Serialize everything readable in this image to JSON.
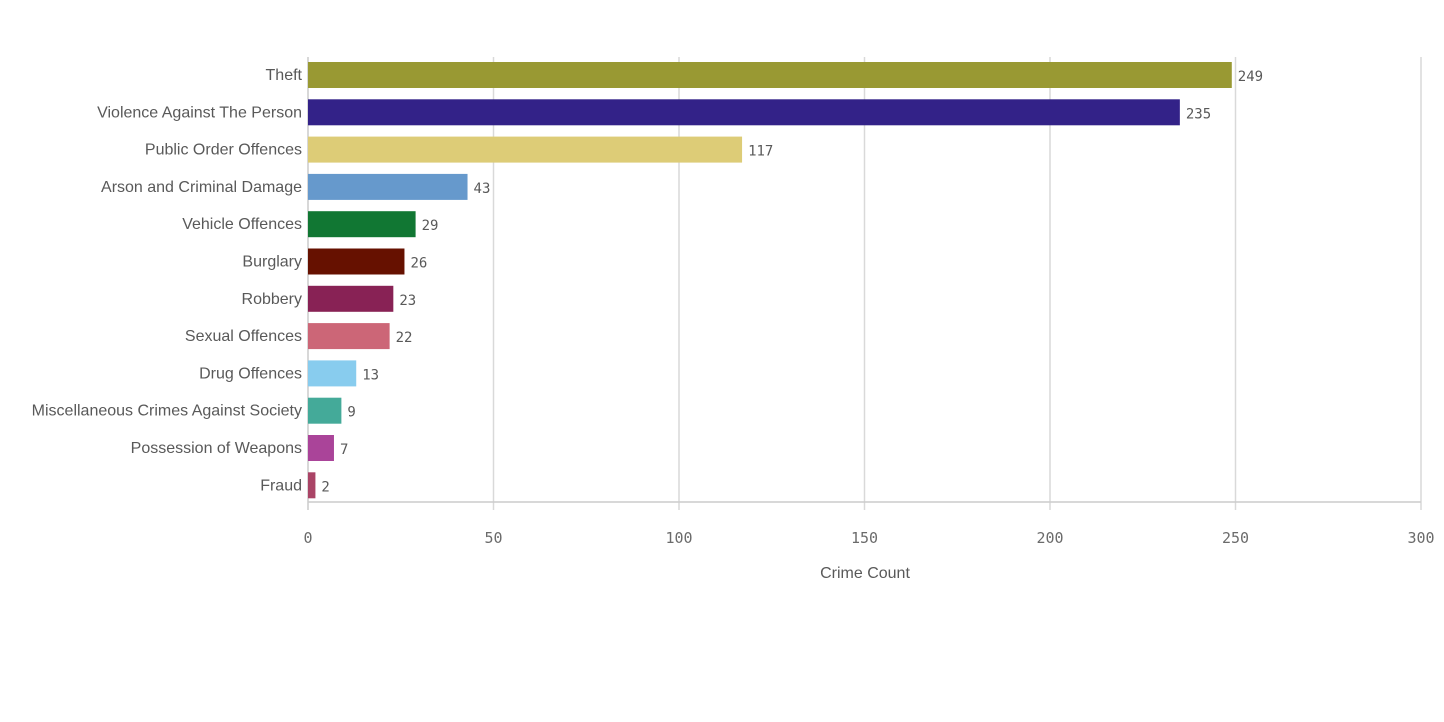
{
  "chart_data": {
    "type": "bar",
    "orientation": "horizontal",
    "categories": [
      "Theft",
      "Violence Against The Person",
      "Public Order Offences",
      "Arson and Criminal Damage",
      "Vehicle Offences",
      "Burglary",
      "Robbery",
      "Sexual Offences",
      "Drug Offences",
      "Miscellaneous Crimes Against Society",
      "Possession of Weapons",
      "Fraud"
    ],
    "values": [
      249,
      235,
      117,
      43,
      29,
      26,
      23,
      22,
      13,
      9,
      7,
      2
    ],
    "colors": [
      "#999933",
      "#332288",
      "#DDCC77",
      "#6699CC",
      "#117733",
      "#661100",
      "#882255",
      "#CC6677",
      "#88CCEE",
      "#44AA99",
      "#AA4499",
      "#AA4466"
    ],
    "xlabel": "Crime Count",
    "ylabel": "",
    "title": "",
    "xlim": [
      0,
      300
    ],
    "xticks": [
      0,
      50,
      100,
      150,
      200,
      250,
      300
    ],
    "grid": true,
    "data_labels": true
  }
}
